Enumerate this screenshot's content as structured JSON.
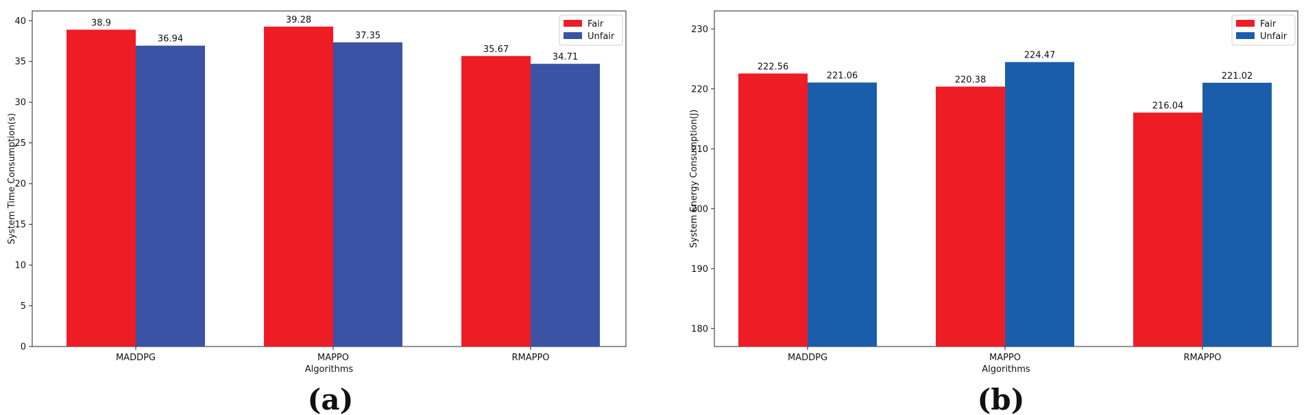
{
  "chart_data": [
    {
      "type": "bar",
      "panel": "(a)",
      "title": "",
      "xlabel": "Algorithms",
      "ylabel": "System Time Consumption(s)",
      "categories": [
        "MADDPG",
        "MAPPO",
        "RMAPPO"
      ],
      "series": [
        {
          "name": "Fair",
          "values": [
            38.9,
            39.28,
            35.67
          ],
          "labels": [
            "38.9",
            "39.28",
            "35.67"
          ],
          "color": "#ee1c25"
        },
        {
          "name": "Unfair",
          "values": [
            36.94,
            37.35,
            34.71
          ],
          "labels": [
            "36.94",
            "37.35",
            "34.71"
          ],
          "color": "#3a53a4"
        }
      ],
      "ylim": [
        0,
        41.2
      ],
      "yticks": [
        0,
        5,
        10,
        15,
        20,
        25,
        30,
        35,
        40
      ],
      "legend": "top-right",
      "grid": false
    },
    {
      "type": "bar",
      "panel": "(b)",
      "title": "",
      "xlabel": "Algorithms",
      "ylabel": "System Energy Consumption(J)",
      "categories": [
        "MADDPG",
        "MAPPO",
        "RMAPPO"
      ],
      "series": [
        {
          "name": "Fair",
          "values": [
            222.56,
            220.38,
            216.04
          ],
          "labels": [
            "222.56",
            "220.38",
            "216.04"
          ],
          "color": "#ee1c25"
        },
        {
          "name": "Unfair",
          "values": [
            221.06,
            224.47,
            221.02
          ],
          "labels": [
            "221.06",
            "224.47",
            "221.02"
          ],
          "color": "#1a5eab"
        }
      ],
      "ylim": [
        177,
        233
      ],
      "yticks": [
        180,
        190,
        200,
        210,
        220,
        230
      ],
      "legend": "top-right",
      "grid": false
    }
  ]
}
